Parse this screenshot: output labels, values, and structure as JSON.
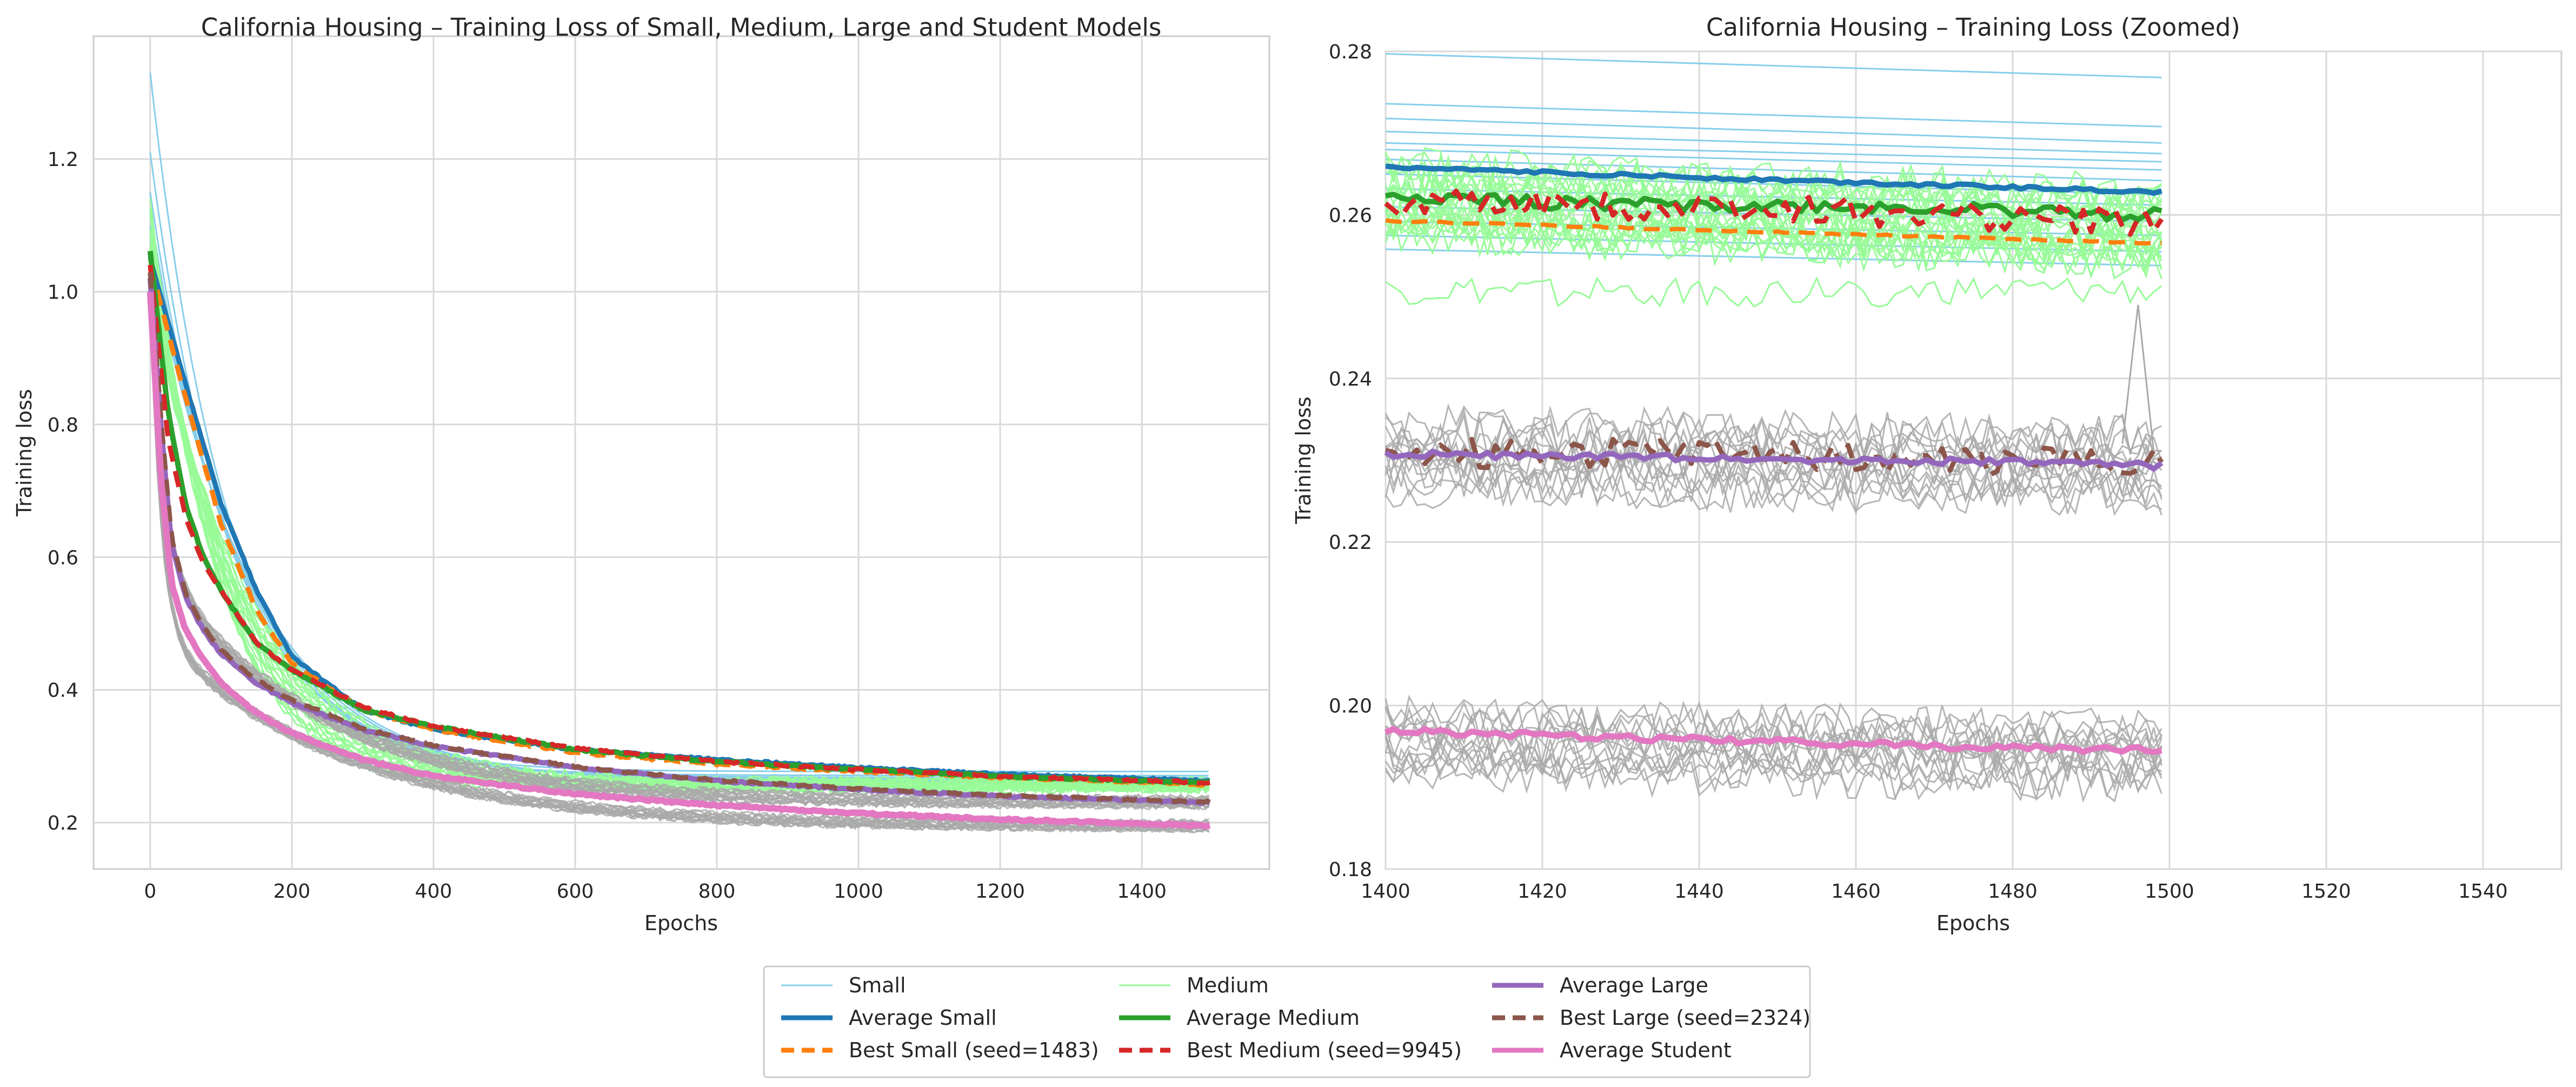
{
  "chart_data": [
    {
      "type": "line",
      "title": "California Housing – Training Loss of Small, Medium, Large and Student Models",
      "xlabel": "Epochs",
      "ylabel": "Training loss",
      "xlim": [
        -80,
        1580
      ],
      "ylim": [
        0.13,
        1.385
      ],
      "xticks": [
        0,
        200,
        400,
        600,
        800,
        1000,
        1200,
        1400
      ],
      "yticks": [
        0.2,
        0.4,
        0.6,
        0.8,
        1.0,
        1.2
      ],
      "ytick_labels": [
        "0.2",
        "0.4",
        "0.6",
        "0.8",
        "1.0",
        "1.2"
      ],
      "grid": true,
      "series": [
        {
          "name": "Small",
          "group": "small",
          "style": "thin",
          "color": "#87ceeb",
          "start_values": [
            1.33,
            1.21,
            1.15,
            1.12,
            1.1,
            1.08,
            1.06
          ],
          "end_values_at_1499": [
            0.277,
            0.271,
            0.268,
            0.266,
            0.264,
            0.262,
            0.26,
            0.258,
            0.256
          ],
          "approx_value_at_200": 0.45
        },
        {
          "name": "Average Small",
          "group": "small",
          "style": "thick",
          "color": "#1f77b4",
          "x": [
            0,
            50,
            100,
            150,
            200,
            300,
            400,
            600,
            800,
            1000,
            1200,
            1499
          ],
          "values": [
            1.05,
            0.86,
            0.68,
            0.55,
            0.45,
            0.37,
            0.34,
            0.31,
            0.295,
            0.283,
            0.273,
            0.263
          ]
        },
        {
          "name": "Best Small (seed=1483)",
          "group": "small",
          "style": "dashed",
          "color": "#ff7f0e",
          "x": [
            0,
            50,
            100,
            150,
            200,
            300,
            400,
            600,
            800,
            1000,
            1200,
            1499
          ],
          "values": [
            1.04,
            0.84,
            0.65,
            0.52,
            0.44,
            0.37,
            0.34,
            0.305,
            0.288,
            0.277,
            0.268,
            0.257
          ]
        },
        {
          "name": "Medium",
          "group": "medium",
          "style": "thin",
          "color": "#98fb98",
          "start_values": [
            1.14,
            1.11,
            1.09,
            1.07,
            1.05,
            1.03,
            1.01
          ],
          "end_values_at_1499": [
            0.266,
            0.264,
            0.262,
            0.26,
            0.258,
            0.256,
            0.25
          ]
        },
        {
          "name": "Average Medium",
          "group": "medium",
          "style": "thick",
          "color": "#2ca02c",
          "x": [
            0,
            25,
            50,
            75,
            100,
            150,
            200,
            300,
            400,
            600,
            800,
            1000,
            1200,
            1499
          ],
          "values": [
            1.06,
            0.82,
            0.68,
            0.6,
            0.55,
            0.47,
            0.43,
            0.37,
            0.345,
            0.31,
            0.292,
            0.28,
            0.27,
            0.26
          ]
        },
        {
          "name": "Best Medium (seed=9945)",
          "group": "medium",
          "style": "dashed",
          "color": "#d62728",
          "x": [
            0,
            25,
            50,
            75,
            100,
            150,
            200,
            300,
            400,
            600,
            800,
            1000,
            1200,
            1499
          ],
          "values": [
            1.04,
            0.78,
            0.66,
            0.59,
            0.55,
            0.47,
            0.43,
            0.375,
            0.345,
            0.312,
            0.292,
            0.28,
            0.27,
            0.26
          ]
        },
        {
          "name": "Large",
          "group": "large",
          "style": "thin",
          "color": "#a9a9a9",
          "end_values_at_1499": [
            0.237,
            0.233,
            0.231,
            0.229,
            0.227,
            0.225
          ]
        },
        {
          "name": "Average Large",
          "group": "large",
          "style": "thick",
          "color": "#9467bd",
          "x": [
            0,
            15,
            30,
            50,
            75,
            100,
            150,
            200,
            300,
            400,
            600,
            800,
            1000,
            1200,
            1499
          ],
          "values": [
            1.02,
            0.8,
            0.62,
            0.54,
            0.49,
            0.455,
            0.41,
            0.38,
            0.34,
            0.315,
            0.283,
            0.263,
            0.25,
            0.24,
            0.23
          ]
        },
        {
          "name": "Best Large (seed=2324)",
          "group": "large",
          "style": "dashed",
          "color": "#8c564b",
          "x": [
            0,
            15,
            30,
            50,
            75,
            100,
            150,
            200,
            300,
            400,
            600,
            800,
            1000,
            1200,
            1499
          ],
          "values": [
            1.03,
            0.81,
            0.63,
            0.545,
            0.495,
            0.46,
            0.415,
            0.385,
            0.342,
            0.316,
            0.284,
            0.264,
            0.251,
            0.241,
            0.231
          ]
        },
        {
          "name": "Student",
          "group": "student",
          "style": "thin",
          "color": "#a9a9a9",
          "end_values_at_1499": [
            0.2,
            0.198,
            0.196,
            0.194,
            0.192,
            0.19
          ]
        },
        {
          "name": "Average Student",
          "group": "student",
          "style": "thick",
          "color": "#e377c2",
          "x": [
            0,
            15,
            30,
            50,
            75,
            100,
            150,
            200,
            300,
            400,
            600,
            800,
            1000,
            1200,
            1499
          ],
          "values": [
            1.0,
            0.72,
            0.56,
            0.49,
            0.445,
            0.41,
            0.365,
            0.335,
            0.295,
            0.27,
            0.243,
            0.226,
            0.214,
            0.205,
            0.195
          ]
        }
      ]
    },
    {
      "type": "line",
      "title": "California Housing – Training Loss (Zoomed)",
      "xlabel": "Epochs",
      "ylabel": "Training loss",
      "xlim": [
        1400,
        1550
      ],
      "ylim": [
        0.18,
        0.28
      ],
      "xticks": [
        1400,
        1420,
        1440,
        1460,
        1480,
        1500,
        1520,
        1540
      ],
      "yticks": [
        0.18,
        0.2,
        0.22,
        0.24,
        0.26,
        0.28
      ],
      "ytick_labels": [
        "0.18",
        "0.20",
        "0.22",
        "0.24",
        "0.26",
        "0.28"
      ],
      "grid": true,
      "series": [
        {
          "name": "Small",
          "x": [
            1400,
            1499
          ],
          "lines": [
            [
              0.2797,
              0.2768
            ],
            [
              0.2736,
              0.2708
            ],
            [
              0.2718,
              0.2688
            ],
            [
              0.2702,
              0.2675
            ],
            [
              0.2688,
              0.2665
            ],
            [
              0.268,
              0.2655
            ],
            [
              0.2668,
              0.2642
            ],
            [
              0.265,
              0.2625
            ],
            [
              0.2632,
              0.2612
            ],
            [
              0.261,
              0.2592
            ],
            [
              0.2592,
              0.2575
            ],
            [
              0.2575,
              0.2555
            ],
            [
              0.2558,
              0.2538
            ]
          ]
        },
        {
          "name": "Average Small",
          "x": [
            1400,
            1499
          ],
          "values": [
            0.2658,
            0.2628
          ]
        },
        {
          "name": "Best Small (seed=1483)",
          "x": [
            1400,
            1499
          ],
          "values": [
            0.2593,
            0.2565
          ]
        },
        {
          "name": "Medium",
          "x_range": [
            1400,
            1499
          ],
          "mean_range": [
            0.2665,
            0.2585
          ],
          "low_curve": [
            0.2498,
            0.2498
          ]
        },
        {
          "name": "Average Medium",
          "x": [
            1400,
            1420,
            1440,
            1460,
            1480,
            1499
          ],
          "values": [
            0.2625,
            0.2615,
            0.2612,
            0.261,
            0.2605,
            0.26
          ]
        },
        {
          "name": "Best Medium (seed=9945)",
          "x": [
            1400,
            1420,
            1440,
            1460,
            1480,
            1499
          ],
          "values": [
            0.2615,
            0.2612,
            0.261,
            0.2605,
            0.2595,
            0.259
          ]
        },
        {
          "name": "Large",
          "x_range": [
            1400,
            1499
          ],
          "band": [
            0.225,
            0.236
          ],
          "spike": {
            "x": 1496,
            "value": 0.249
          }
        },
        {
          "name": "Average Large",
          "x": [
            1400,
            1420,
            1440,
            1460,
            1480,
            1499
          ],
          "values": [
            0.2308,
            0.2305,
            0.2303,
            0.23,
            0.2298,
            0.2293
          ]
        },
        {
          "name": "Best Large (seed=2324)",
          "x": [
            1400,
            1420,
            1440,
            1460,
            1480,
            1499
          ],
          "values": [
            0.2305,
            0.231,
            0.2308,
            0.2302,
            0.2298,
            0.2302
          ]
        },
        {
          "name": "Student",
          "x_range": [
            1400,
            1499
          ],
          "band": [
            0.19,
            0.2015
          ]
        },
        {
          "name": "Average Student",
          "x": [
            1400,
            1420,
            1440,
            1460,
            1480,
            1499
          ],
          "values": [
            0.197,
            0.1963,
            0.1958,
            0.1953,
            0.1948,
            0.1945
          ]
        }
      ]
    }
  ],
  "legend": {
    "placement": "bottom-center",
    "entries": [
      {
        "label": "Small",
        "color": "#87ceeb",
        "style": "thin"
      },
      {
        "label": "Average Small",
        "color": "#1f77b4",
        "style": "thick"
      },
      {
        "label": "Best Small (seed=1483)",
        "color": "#ff7f0e",
        "style": "dashed"
      },
      {
        "label": "Medium",
        "color": "#98fb98",
        "style": "thin"
      },
      {
        "label": "Average Medium",
        "color": "#2ca02c",
        "style": "thick"
      },
      {
        "label": "Best Medium (seed=9945)",
        "color": "#d62728",
        "style": "dashed"
      },
      {
        "label": "Average Large",
        "color": "#9467bd",
        "style": "thick"
      },
      {
        "label": "Best Large (seed=2324)",
        "color": "#8c564b",
        "style": "dashed"
      },
      {
        "label": "Average Student",
        "color": "#e377c2",
        "style": "thick"
      }
    ]
  }
}
